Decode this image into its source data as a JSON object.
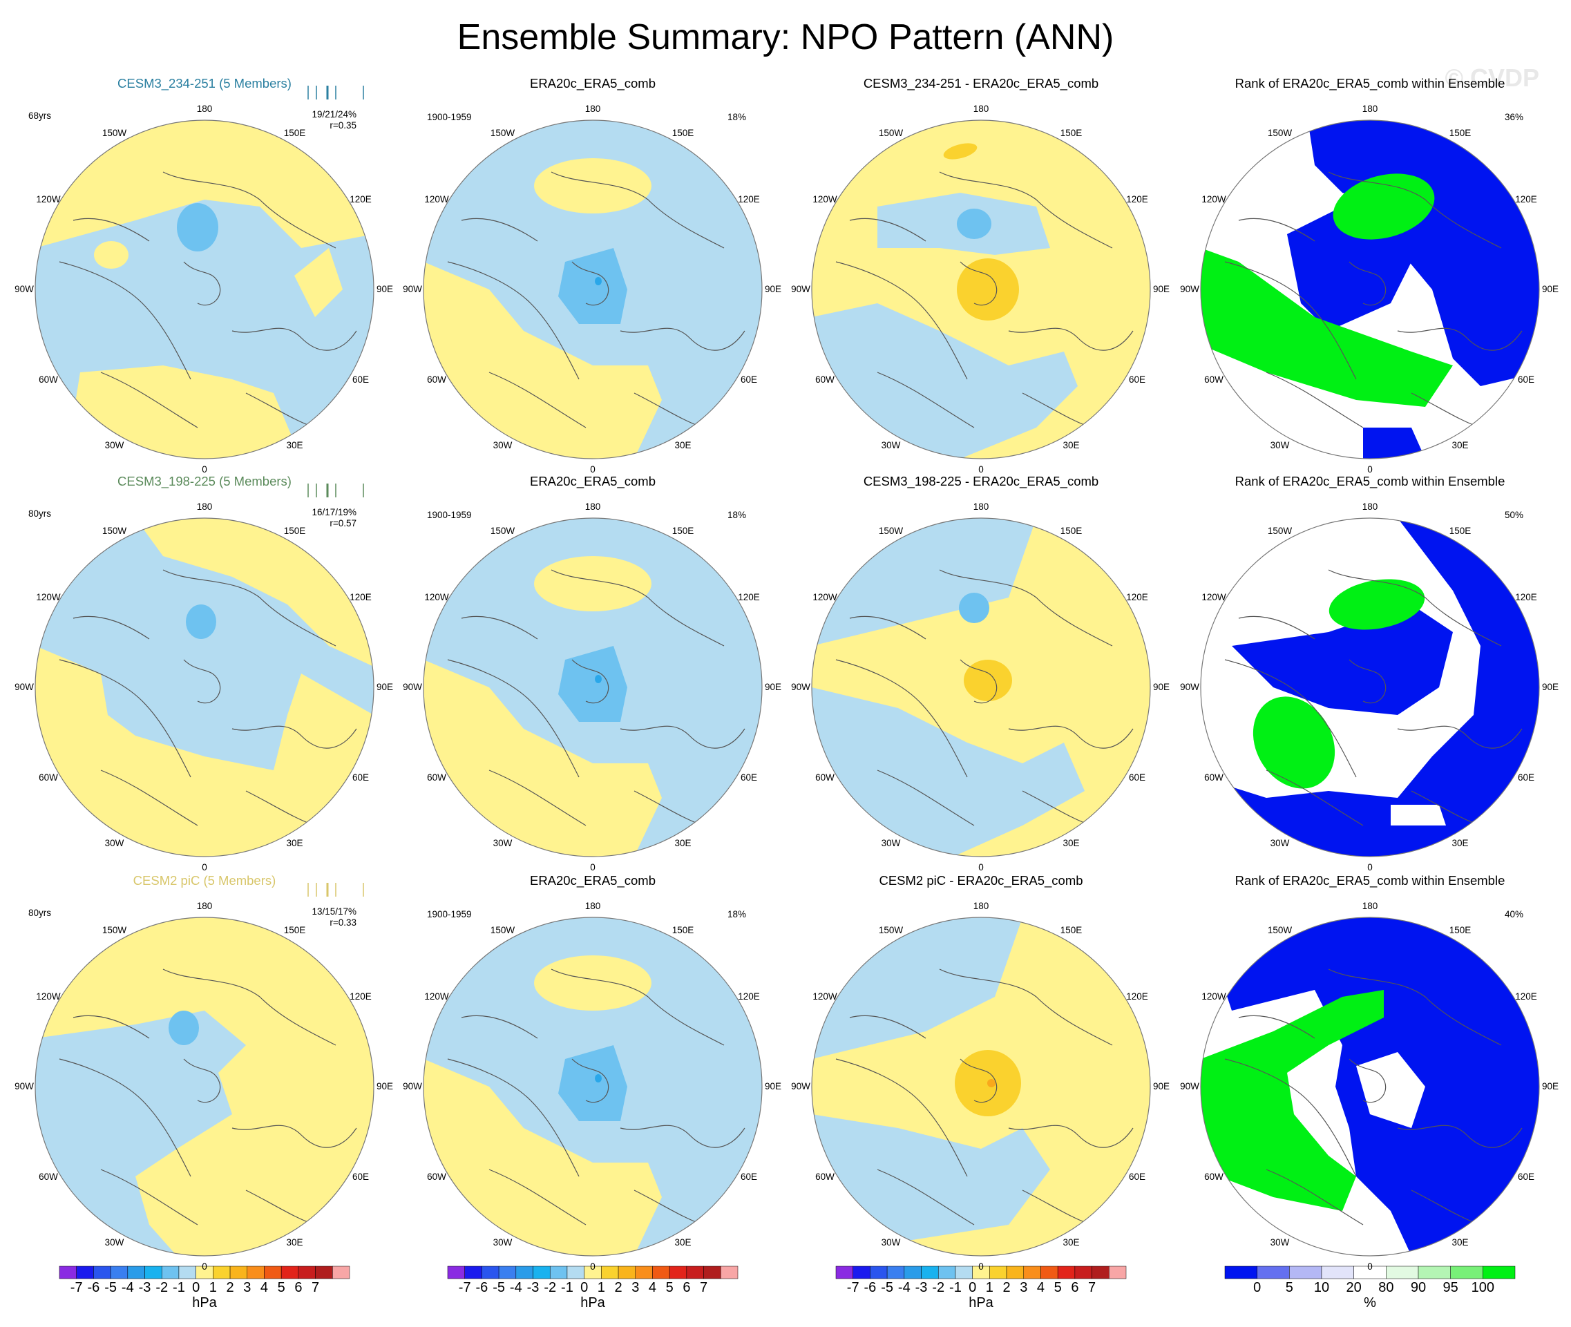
{
  "title": "Ensemble Summary: NPO Pattern (ANN)",
  "watermark": "© CVDP",
  "colors": {
    "pos1": "#fff390",
    "pos2": "#fad22e",
    "pos3": "#f9a81c",
    "neg1": "#b4dcf1",
    "neg2": "#6ec2f0",
    "neg3": "#2aa7e9",
    "rank_low": "#0014f0",
    "rank_high": "#00f014",
    "rank_mid": "#ffffff",
    "coast": "#555555",
    "model1": "#2a7fa0",
    "model2": "#5a8a5a",
    "model3": "#d8c66a"
  },
  "lon_labels": [
    "180",
    "150E",
    "120E",
    "90E",
    "60E",
    "30E",
    "0",
    "30W",
    "60W",
    "90W",
    "120W",
    "150W"
  ],
  "rows": [
    {
      "model": "CESM3_234-251 (5 Members)",
      "years": "68yrs",
      "pcts": "19/21/24%",
      "r": "r=0.35",
      "obs_title": "ERA20c_ERA5_comb",
      "obs_period": "1900-1959",
      "obs_pct": "18%",
      "diff_title": "CESM3_234-251 - ERA20c_ERA5_comb",
      "rank_title": "Rank of ERA20c_ERA5_comb within Ensemble",
      "rank_pct": "36%",
      "model_pattern": "anomaly pattern (hPa): positive over Pacific (south of 180) and Atlantic (near 0); negative elsewhere; weak center -1 near 160W mid-lat",
      "diff_pattern": "anomaly (hPa): +1 to +2 center over Arctic, -1 to -2 over north Pacific",
      "rank_pattern": "rank (%): high ranks 100 over Atlantic/west, low 0 over pole and east"
    },
    {
      "model": "CESM3_198-225 (5 Members)",
      "years": "80yrs",
      "pcts": "16/17/19%",
      "r": "r=0.57",
      "obs_title": "ERA20c_ERA5_comb",
      "obs_period": "1900-1959",
      "obs_pct": "18%",
      "diff_title": "CESM3_198-225 - ERA20c_ERA5_comb",
      "rank_title": "Rank of ERA20c_ERA5_comb within Ensemble",
      "rank_pct": "50%",
      "model_pattern": "anomaly pattern (hPa): negative over pole and Pacific, positive over Atlantic/Europe",
      "diff_pattern": "anomaly (hPa): +2 over Arctic, -2 over north Pacific",
      "rank_pattern": "rank (%): low ranks 0 over pole and Eurasia, high 100 over Atlantic"
    },
    {
      "model": "CESM2 piC (5 Members)",
      "years": "80yrs",
      "pcts": "13/15/17%",
      "r": "r=0.33",
      "obs_title": "ERA20c_ERA5_comb",
      "obs_period": "1900-1959",
      "obs_pct": "18%",
      "diff_title": "CESM2 piC - ERA20c_ERA5_comb",
      "rank_title": "Rank of ERA20c_ERA5_comb within Ensemble",
      "rank_pct": "40%",
      "model_pattern": "anomaly pattern (hPa): positive over most of domain, negative over Pacific/America",
      "diff_pattern": "anomaly (hPa): +2 to +3 over Arctic, -1 over north Pacific",
      "rank_pattern": "rank (%): high 100 over Atlantic/Europe, low 0 over Pacific/Asia"
    }
  ],
  "colorbar_hpa": {
    "unit": "hPa",
    "labels": [
      "-7",
      "-6",
      "-5",
      "-4",
      "-3",
      "-2",
      "-1",
      "0",
      "1",
      "2",
      "3",
      "4",
      "5",
      "6",
      "7"
    ],
    "colors": [
      "#8a2be2",
      "#1a1aee",
      "#2a55ee",
      "#3a7ff0",
      "#2a9ce9",
      "#19b2ef",
      "#6ec2f0",
      "#b4dcf1",
      "#fff390",
      "#fad22e",
      "#f9b41c",
      "#f98e1b",
      "#f05a14",
      "#e2241a",
      "#c81e1e",
      "#b01e1e",
      "#f8a6a6"
    ]
  },
  "colorbar_rank": {
    "unit": "%",
    "labels": [
      "0",
      "5",
      "10",
      "20",
      "80",
      "90",
      "95",
      "100"
    ],
    "colors": [
      "#0014f0",
      "#6470f0",
      "#b4b8f5",
      "#e2e4fa",
      "#ffffff",
      "#e2fae2",
      "#b4f5b4",
      "#78f078",
      "#00f014"
    ]
  }
}
